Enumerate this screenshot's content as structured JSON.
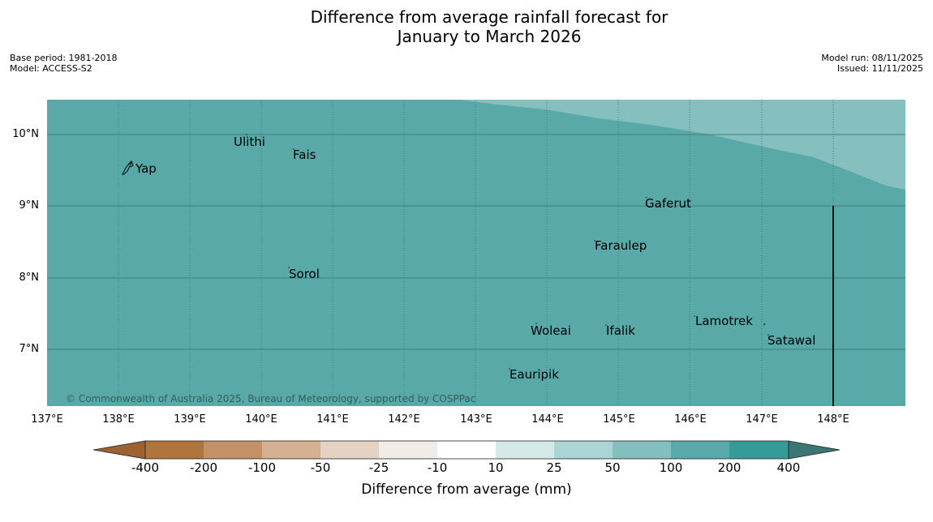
{
  "title": {
    "line1": "Difference from average rainfall forecast for",
    "line2": "January to March 2026"
  },
  "meta": {
    "base_period": "Base period: 1981-2018",
    "model": "Model: ACCESS-S2",
    "model_run": "Model run: 08/11/2025",
    "issued": "Issued: 11/11/2025"
  },
  "map": {
    "lat_labels": [
      "10°N",
      "9°N",
      "8°N",
      "7°N"
    ],
    "lon_labels": [
      "137°E",
      "138°E",
      "139°E",
      "140°E",
      "141°E",
      "142°E",
      "143°E",
      "144°E",
      "145°E",
      "146°E",
      "147°E",
      "148°E"
    ],
    "places": [
      {
        "name": "Ulithi"
      },
      {
        "name": "Fais"
      },
      {
        "name": "Yap"
      },
      {
        "name": "Gaferut"
      },
      {
        "name": "Faraulep"
      },
      {
        "name": "Sorol"
      },
      {
        "name": "Lamotrek"
      },
      {
        "name": "Woleai"
      },
      {
        "name": "Ifalik"
      },
      {
        "name": "Satawal"
      },
      {
        "name": "Eauripik"
      }
    ],
    "regions": [
      {
        "category": "100 to 200 mm",
        "color": "#5aa9a9"
      },
      {
        "category": "50 to 100 mm",
        "color": "#85c0bf"
      }
    ],
    "copyright": "© Commonwealth of Australia 2025, Bureau of Meteorology, supported by COSPPac"
  },
  "colorbar": {
    "label": "Difference from average (mm)",
    "ticks": [
      "-400",
      "-200",
      "-100",
      "-50",
      "-25",
      "-10",
      "10",
      "25",
      "50",
      "100",
      "200",
      "400"
    ],
    "colors": [
      "#9d6232",
      "#b0753d",
      "#c29165",
      "#d4b191",
      "#e4d2c2",
      "#f0ede8",
      "#ffffff",
      "#d5e9e8",
      "#abd5d5",
      "#82bfbe",
      "#5aa9a9",
      "#359a98",
      "#3c7674"
    ]
  }
}
